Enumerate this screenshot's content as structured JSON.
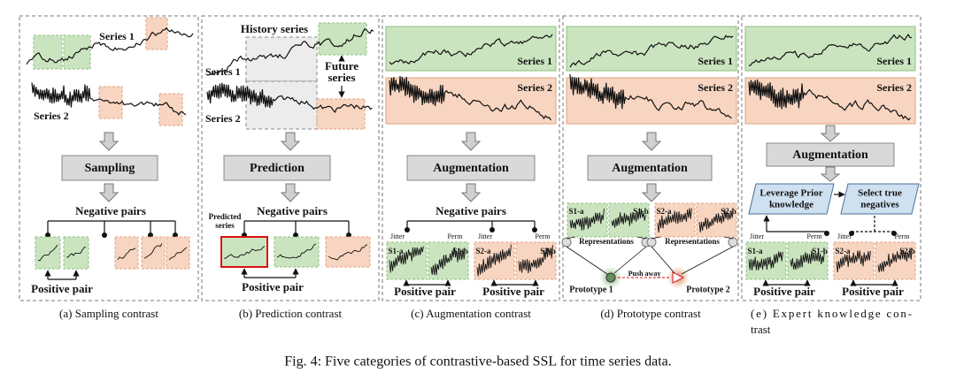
{
  "panels": [
    {
      "series_1": "Series 1",
      "series_2": "Series 2",
      "method": "Sampling",
      "negative_pairs": "Negative pairs",
      "positive_pair": "Positive pair",
      "caption": "(a) Sampling contrast"
    },
    {
      "history": "History series",
      "series_1": "Series 1",
      "future": [
        "Future",
        "series"
      ],
      "series_2": "Series 2",
      "method": "Prediction",
      "negative_pairs": "Negative pairs",
      "predicted": [
        "Predicted",
        "series"
      ],
      "positive_pair": "Positive pair",
      "caption": "(b) Prediction contrast"
    },
    {
      "series_1": "Series 1",
      "series_2": "Series 2",
      "method": "Augmentation",
      "negative_pairs": "Negative pairs",
      "views": [
        {
          "aug": "Jitter",
          "name": "S1-a"
        },
        {
          "aug": "Perm",
          "name": "S1-b"
        },
        {
          "aug": "Jitter",
          "name": "S2-a"
        },
        {
          "aug": "Perm",
          "name": "S2-b"
        }
      ],
      "positive_pairs": [
        "Positive pair",
        "Positive pair"
      ],
      "caption": "(c) Augmentation contrast"
    },
    {
      "series_1": "Series 1",
      "series_2": "Series 2",
      "method": "Augmentation",
      "views": [
        "S1-a",
        "S1-b",
        "S2-a",
        "S2-b"
      ],
      "representations": [
        "Representations",
        "Representations"
      ],
      "push_away": "Push away",
      "prototypes": [
        "Prototype 1",
        "Prototype 2"
      ],
      "caption": "(d) Prototype contrast"
    },
    {
      "series_1": "Series 1",
      "series_2": "Series 2",
      "method": "Augmentation",
      "prior": [
        "Leverage Prior",
        "knowledge"
      ],
      "select": [
        "Select true",
        "negatives"
      ],
      "views": [
        {
          "aug": "Jitter",
          "name": "S1-a"
        },
        {
          "aug": "Perm",
          "name": "S1-b"
        },
        {
          "aug": "Jitter",
          "name": "S2-a"
        },
        {
          "aug": "Perm",
          "name": "S2-b"
        }
      ],
      "positive_pairs": [
        "Positive pair",
        "Positive pair"
      ],
      "caption": [
        "(e) Expert knowledge con-",
        "trast"
      ]
    }
  ],
  "figure_caption": "Fig. 4: Five categories of contrastive-based SSL for time series data."
}
